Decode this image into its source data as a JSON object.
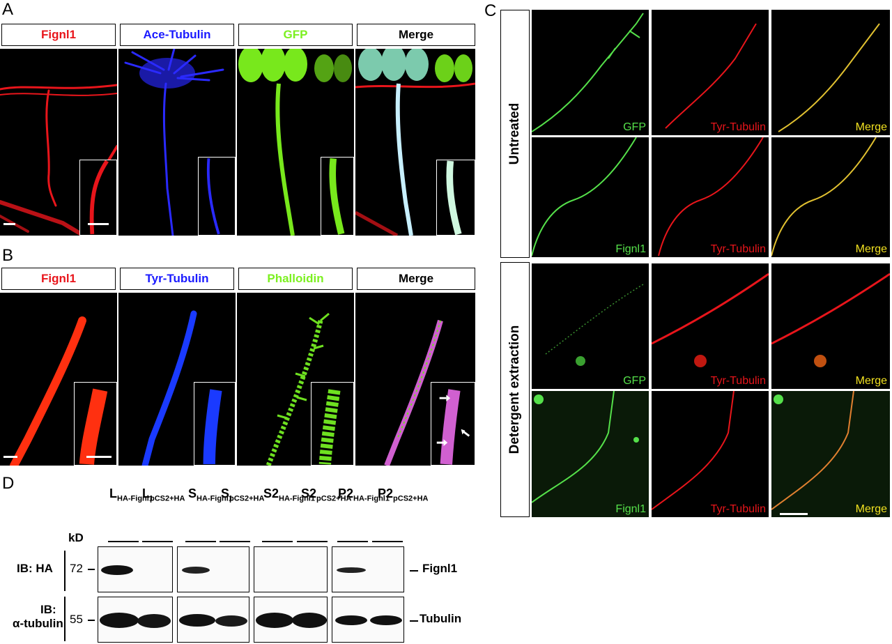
{
  "panel_letters": {
    "a": "A",
    "b": "B",
    "c": "C",
    "d": "D"
  },
  "panel_a": {
    "headers": [
      "Fignl1",
      "Ace-Tubulin",
      "GFP",
      "Merge"
    ],
    "colors": [
      "#e8151b",
      "#1a1aff",
      "#7cf020",
      "#000000"
    ]
  },
  "panel_b": {
    "headers": [
      "Fignl1",
      "Tyr-Tubulin",
      "Phalloidin",
      "Merge"
    ],
    "colors": [
      "#e8151b",
      "#1a1aff",
      "#7cf020",
      "#000000"
    ]
  },
  "panel_c": {
    "row_groups": [
      "Untreated",
      "Detergent extraction"
    ],
    "rows": [
      [
        "GFP",
        "Tyr-Tubulin",
        "Merge"
      ],
      [
        "Fignl1",
        "Tyr-Tubulin",
        "Merge"
      ],
      [
        "GFP",
        "Tyr-Tubulin",
        "Merge"
      ],
      [
        "Fignl1",
        "Tyr-Tubulin",
        "Merge"
      ]
    ],
    "label_colors": [
      "#55e04a",
      "#e8151b",
      "#f0e020"
    ]
  },
  "panel_d": {
    "unit": "kD",
    "lanes": [
      {
        "main": "L",
        "sub": "HA-Fignl1"
      },
      {
        "main": "L",
        "sub": "pCS2+HA"
      },
      {
        "main": "S",
        "sub": "HA-Fignl1"
      },
      {
        "main": "S",
        "sub": "pCS2+HA"
      },
      {
        "main": "S2",
        "sub": "HA-Fignl1"
      },
      {
        "main": "S2",
        "sub": "pCS2+HA"
      },
      {
        "main": "P2",
        "sub": "HA-Fignl1"
      },
      {
        "main": "P2",
        "sub": "pCS2+HA"
      }
    ],
    "blot_rows": [
      {
        "ib": "IB: HA",
        "ib_line2": "",
        "mw": "72",
        "band": "Fignl1"
      },
      {
        "ib": "IB:",
        "ib_line2": "α-tubulin",
        "mw": "55",
        "band": "Tubulin"
      }
    ]
  }
}
